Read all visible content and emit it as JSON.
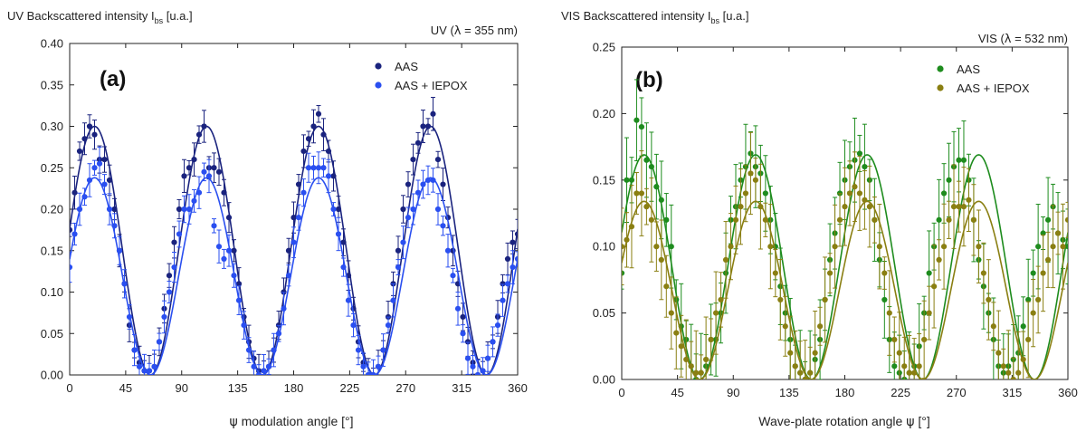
{
  "chart_data": [
    {
      "type": "scatter",
      "panel_label": "(a)",
      "title": "UV Backscattered intensity I",
      "title_subscript": "bs",
      "title_suffix": " [u.a.]",
      "subtitle_prefix": "UV (",
      "subtitle_symbol": "λ",
      "subtitle_suffix": " = 355 nm)",
      "xlabel_symbol": "ψ",
      "xlabel": " modulation angle [°]",
      "xlim": [
        0,
        360
      ],
      "ylim": [
        0,
        0.4
      ],
      "xticks": [
        "0",
        "45",
        "90",
        "135",
        "180",
        "225",
        "270",
        "315",
        "360"
      ],
      "yticks": [
        "0.00",
        "0.05",
        "0.10",
        "0.15",
        "0.20",
        "0.25",
        "0.30",
        "0.35",
        "0.40"
      ],
      "grid": false,
      "legend_position": "top-right",
      "series": [
        {
          "name": "AAS",
          "color": "#1a237e",
          "fit": {
            "amplitude": 0.3,
            "period": 90,
            "phase_deg": 20
          },
          "x": [
            0,
            4,
            8,
            12,
            16,
            20,
            24,
            28,
            32,
            36,
            40,
            44,
            48,
            52,
            56,
            60,
            64,
            68,
            72,
            76,
            80,
            84,
            88,
            92,
            96,
            100,
            104,
            108,
            112,
            116,
            120,
            124,
            128,
            132,
            136,
            140,
            144,
            148,
            152,
            156,
            160,
            164,
            168,
            172,
            176,
            180,
            184,
            188,
            192,
            196,
            200,
            204,
            208,
            212,
            216,
            220,
            224,
            228,
            232,
            236,
            240,
            244,
            248,
            252,
            256,
            260,
            264,
            268,
            272,
            276,
            280,
            284,
            288,
            292,
            296,
            300,
            304,
            308,
            312,
            316,
            320,
            324,
            328,
            332,
            336,
            340,
            344,
            348,
            352,
            356,
            360
          ],
          "y": [
            0.175,
            0.22,
            0.27,
            0.285,
            0.3,
            0.29,
            0.26,
            0.26,
            0.235,
            0.2,
            0.15,
            0.11,
            0.06,
            0.03,
            0.015,
            0.005,
            0.005,
            0.01,
            0.04,
            0.08,
            0.12,
            0.16,
            0.2,
            0.24,
            0.25,
            0.26,
            0.29,
            0.3,
            0.25,
            0.25,
            0.245,
            0.22,
            0.19,
            0.15,
            0.11,
            0.07,
            0.04,
            0.02,
            0.005,
            0.005,
            0.01,
            0.03,
            0.06,
            0.1,
            0.15,
            0.19,
            0.23,
            0.27,
            0.285,
            0.3,
            0.315,
            0.29,
            0.27,
            0.24,
            0.2,
            0.16,
            0.12,
            0.08,
            0.04,
            0.015,
            0.0,
            0.0,
            0.01,
            0.03,
            0.07,
            0.11,
            0.15,
            0.2,
            0.23,
            0.26,
            0.28,
            0.3,
            0.3,
            0.315,
            0.26,
            0.23,
            0.19,
            0.15,
            0.11,
            0.07,
            0.04,
            0.015,
            0.0,
            0.005,
            0.02,
            0.04,
            0.07,
            0.11,
            0.14,
            0.16,
            0.17
          ]
        },
        {
          "name": "AAS + IEPOX",
          "color": "#2a4ff0",
          "fit": {
            "amplitude": 0.238,
            "period": 90,
            "phase_deg": 20
          },
          "x": [
            0,
            4,
            8,
            12,
            16,
            20,
            24,
            28,
            32,
            36,
            40,
            44,
            48,
            52,
            56,
            60,
            64,
            68,
            72,
            76,
            80,
            84,
            88,
            92,
            96,
            100,
            104,
            108,
            112,
            116,
            120,
            124,
            128,
            132,
            136,
            140,
            144,
            148,
            152,
            156,
            160,
            164,
            168,
            172,
            176,
            180,
            184,
            188,
            192,
            196,
            200,
            204,
            208,
            212,
            216,
            220,
            224,
            228,
            232,
            236,
            240,
            244,
            248,
            252,
            256,
            260,
            264,
            268,
            272,
            276,
            280,
            284,
            288,
            292,
            296,
            300,
            304,
            308,
            312,
            316,
            320,
            324,
            328,
            332,
            336,
            340,
            344,
            348,
            352,
            356,
            360
          ],
          "y": [
            0.13,
            0.17,
            0.2,
            0.215,
            0.235,
            0.25,
            0.255,
            0.23,
            0.2,
            0.18,
            0.15,
            0.11,
            0.07,
            0.03,
            0.01,
            0.005,
            0.005,
            0.01,
            0.04,
            0.07,
            0.1,
            0.13,
            0.17,
            0.2,
            0.2,
            0.21,
            0.22,
            0.245,
            0.24,
            0.18,
            0.155,
            0.14,
            0.15,
            0.12,
            0.09,
            0.06,
            0.03,
            0.01,
            0.0,
            0.005,
            0.01,
            0.03,
            0.05,
            0.08,
            0.12,
            0.16,
            0.19,
            0.22,
            0.25,
            0.25,
            0.25,
            0.25,
            0.24,
            0.2,
            0.17,
            0.13,
            0.09,
            0.06,
            0.03,
            0.01,
            0.0,
            0.0,
            0.01,
            0.03,
            0.06,
            0.09,
            0.13,
            0.16,
            0.19,
            0.2,
            0.22,
            0.23,
            0.235,
            0.235,
            0.2,
            0.18,
            0.15,
            0.12,
            0.08,
            0.05,
            0.02,
            0.01,
            0.0,
            0.005,
            0.02,
            0.04,
            0.06,
            0.09,
            0.11,
            0.13,
            0.14
          ]
        }
      ]
    },
    {
      "type": "scatter",
      "panel_label": "(b)",
      "title": "VIS Backscattered intensity I",
      "title_subscript": "bs",
      "title_suffix": " [u.a.]",
      "subtitle_prefix": "VIS (",
      "subtitle_symbol": "λ",
      "subtitle_suffix": " = 532 nm)",
      "xlabel": "Wave-plate rotation angle ",
      "xlabel_symbol": "ψ",
      "xlabel_unit": " [°]",
      "xlim": [
        0,
        360
      ],
      "ylim": [
        0,
        0.25
      ],
      "xticks": [
        "0",
        "45",
        "90",
        "135",
        "180",
        "225",
        "270",
        "315",
        "360"
      ],
      "yticks": [
        "0.00",
        "0.05",
        "0.10",
        "0.15",
        "0.20",
        "0.25"
      ],
      "grid": false,
      "legend_position": "top-right",
      "series": [
        {
          "name": "AAS",
          "color": "#1e8c1e",
          "fit": {
            "amplitude": 0.169,
            "period": 90,
            "phase_deg": 18
          },
          "x": [
            0,
            4,
            8,
            12,
            16,
            20,
            24,
            28,
            32,
            36,
            40,
            44,
            48,
            52,
            56,
            60,
            64,
            68,
            72,
            76,
            80,
            84,
            88,
            92,
            96,
            100,
            104,
            108,
            112,
            116,
            120,
            124,
            128,
            132,
            136,
            140,
            144,
            148,
            152,
            156,
            160,
            164,
            168,
            172,
            176,
            180,
            184,
            188,
            192,
            196,
            200,
            204,
            208,
            212,
            216,
            220,
            224,
            228,
            232,
            236,
            240,
            244,
            248,
            252,
            256,
            260,
            264,
            268,
            272,
            276,
            280,
            284,
            288,
            292,
            296,
            300,
            304,
            308,
            312,
            316,
            320,
            324,
            328,
            332,
            336,
            340,
            344,
            348,
            352,
            356,
            360
          ],
          "y": [
            0.08,
            0.15,
            0.15,
            0.195,
            0.19,
            0.165,
            0.16,
            0.145,
            0.135,
            0.12,
            0.1,
            0.06,
            0.04,
            0.03,
            0.01,
            0.0,
            0.005,
            0.01,
            0.03,
            0.03,
            0.05,
            0.08,
            0.12,
            0.13,
            0.15,
            0.16,
            0.17,
            0.16,
            0.155,
            0.14,
            0.12,
            0.1,
            0.07,
            0.05,
            0.03,
            0.01,
            0.005,
            0.0,
            0.005,
            0.015,
            0.03,
            0.06,
            0.09,
            0.11,
            0.14,
            0.15,
            0.16,
            0.165,
            0.17,
            0.16,
            0.15,
            0.12,
            0.09,
            0.06,
            0.03,
            0.01,
            0.005,
            0.0,
            0.005,
            0.01,
            0.025,
            0.05,
            0.08,
            0.1,
            0.12,
            0.14,
            0.15,
            0.16,
            0.165,
            0.165,
            0.15,
            0.12,
            0.09,
            0.07,
            0.05,
            0.03,
            0.01,
            0.005,
            0.01,
            0.015,
            0.02,
            0.04,
            0.06,
            0.08,
            0.1,
            0.11,
            0.12,
            0.13,
            0.11,
            0.105,
            0.1
          ]
        },
        {
          "name": "AAS + IEPOX",
          "color": "#8a7f12",
          "fit": {
            "amplitude": 0.134,
            "period": 90,
            "phase_deg": 18
          },
          "x": [
            0,
            4,
            8,
            12,
            16,
            20,
            24,
            28,
            32,
            36,
            40,
            44,
            48,
            52,
            56,
            60,
            64,
            68,
            72,
            76,
            80,
            84,
            88,
            92,
            96,
            100,
            104,
            108,
            112,
            116,
            120,
            124,
            128,
            132,
            136,
            140,
            144,
            148,
            152,
            156,
            160,
            164,
            168,
            172,
            176,
            180,
            184,
            188,
            192,
            196,
            200,
            204,
            208,
            212,
            216,
            220,
            224,
            228,
            232,
            236,
            240,
            244,
            248,
            252,
            256,
            260,
            264,
            268,
            272,
            276,
            280,
            284,
            288,
            292,
            296,
            300,
            304,
            308,
            312,
            316,
            320,
            324,
            328,
            332,
            336,
            340,
            344,
            348,
            352,
            356,
            360
          ],
          "y": [
            0.1,
            0.105,
            0.115,
            0.14,
            0.14,
            0.13,
            0.12,
            0.1,
            0.09,
            0.07,
            0.05,
            0.035,
            0.025,
            0.015,
            0.01,
            0.005,
            0.005,
            0.015,
            0.03,
            0.05,
            0.06,
            0.09,
            0.1,
            0.12,
            0.13,
            0.14,
            0.155,
            0.15,
            0.13,
            0.12,
            0.1,
            0.08,
            0.06,
            0.04,
            0.02,
            0.01,
            0.005,
            0.0,
            0.005,
            0.02,
            0.04,
            0.06,
            0.08,
            0.1,
            0.12,
            0.13,
            0.14,
            0.145,
            0.14,
            0.135,
            0.13,
            0.12,
            0.1,
            0.08,
            0.05,
            0.03,
            0.02,
            0.01,
            0.005,
            0.005,
            0.01,
            0.03,
            0.05,
            0.07,
            0.09,
            0.1,
            0.12,
            0.13,
            0.13,
            0.13,
            0.135,
            0.12,
            0.1,
            0.08,
            0.06,
            0.04,
            0.02,
            0.01,
            0.005,
            0.0,
            0.005,
            0.015,
            0.03,
            0.05,
            0.06,
            0.08,
            0.09,
            0.1,
            0.11,
            0.1,
            0.12
          ]
        }
      ]
    }
  ]
}
